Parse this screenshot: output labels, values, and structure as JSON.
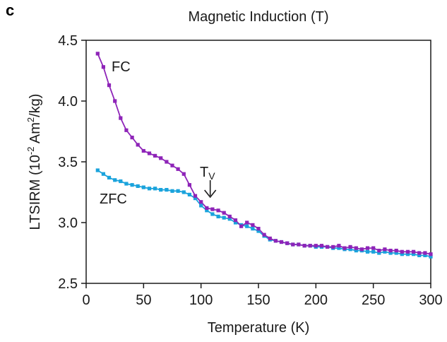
{
  "panel_label": "c",
  "top_residual_label": "Magnetic Induction (T)",
  "colors": {
    "fc": "#8e24b8",
    "zfc": "#1aa3dc",
    "axis": "#1a1a1a"
  },
  "chart_data": {
    "type": "line",
    "xlabel": "Temperature (K)",
    "ylabel_parts": {
      "pre": "LTSIRM (10",
      "exp1": "-2",
      "mid": " Am",
      "exp2": "2",
      "post": "/kg)"
    },
    "xlim": [
      0,
      300
    ],
    "ylim": [
      2.5,
      4.5
    ],
    "x_ticks": [
      0,
      50,
      100,
      150,
      200,
      250,
      300
    ],
    "y_ticks": [
      "2.5",
      "3.0",
      "3.5",
      "4.0",
      "4.5"
    ],
    "annotations": {
      "fc_label": "FC",
      "zfc_label": "ZFC",
      "tv_main": "T",
      "tv_sub": "V",
      "tv_x": 108
    },
    "series": [
      {
        "name": "FC",
        "x": [
          10,
          15,
          20,
          25,
          30,
          35,
          40,
          45,
          50,
          55,
          60,
          65,
          70,
          75,
          80,
          85,
          90,
          95,
          100,
          105,
          110,
          115,
          120,
          125,
          130,
          135,
          140,
          145,
          150,
          155,
          160,
          165,
          170,
          175,
          180,
          185,
          190,
          195,
          200,
          205,
          210,
          215,
          220,
          225,
          230,
          235,
          240,
          245,
          250,
          255,
          260,
          265,
          270,
          275,
          280,
          285,
          290,
          295,
          300
        ],
        "y": [
          4.39,
          4.28,
          4.13,
          4.0,
          3.86,
          3.76,
          3.7,
          3.64,
          3.59,
          3.57,
          3.55,
          3.53,
          3.5,
          3.47,
          3.44,
          3.4,
          3.31,
          3.22,
          3.17,
          3.12,
          3.11,
          3.1,
          3.08,
          3.05,
          3.02,
          2.97,
          3.0,
          2.98,
          2.95,
          2.9,
          2.87,
          2.85,
          2.84,
          2.83,
          2.82,
          2.82,
          2.81,
          2.81,
          2.81,
          2.81,
          2.8,
          2.8,
          2.81,
          2.79,
          2.8,
          2.79,
          2.78,
          2.79,
          2.79,
          2.77,
          2.78,
          2.77,
          2.77,
          2.76,
          2.76,
          2.76,
          2.75,
          2.75,
          2.74
        ]
      },
      {
        "name": "ZFC",
        "x": [
          10,
          15,
          20,
          25,
          30,
          35,
          40,
          45,
          50,
          55,
          60,
          65,
          70,
          75,
          80,
          85,
          90,
          95,
          100,
          105,
          110,
          115,
          120,
          125,
          130,
          135,
          140,
          145,
          150,
          155,
          160,
          165,
          170,
          175,
          180,
          185,
          190,
          195,
          200,
          205,
          210,
          215,
          220,
          225,
          230,
          235,
          240,
          245,
          250,
          255,
          260,
          265,
          270,
          275,
          280,
          285,
          290,
          295,
          300
        ],
        "y": [
          3.43,
          3.4,
          3.37,
          3.35,
          3.34,
          3.32,
          3.31,
          3.3,
          3.29,
          3.28,
          3.28,
          3.27,
          3.27,
          3.26,
          3.26,
          3.25,
          3.23,
          3.2,
          3.14,
          3.1,
          3.07,
          3.05,
          3.04,
          3.03,
          3.0,
          2.98,
          2.97,
          2.95,
          2.93,
          2.89,
          2.86,
          2.85,
          2.84,
          2.83,
          2.82,
          2.82,
          2.81,
          2.81,
          2.8,
          2.8,
          2.8,
          2.79,
          2.79,
          2.78,
          2.78,
          2.77,
          2.77,
          2.76,
          2.76,
          2.75,
          2.76,
          2.75,
          2.75,
          2.74,
          2.74,
          2.74,
          2.73,
          2.73,
          2.72
        ]
      }
    ]
  }
}
